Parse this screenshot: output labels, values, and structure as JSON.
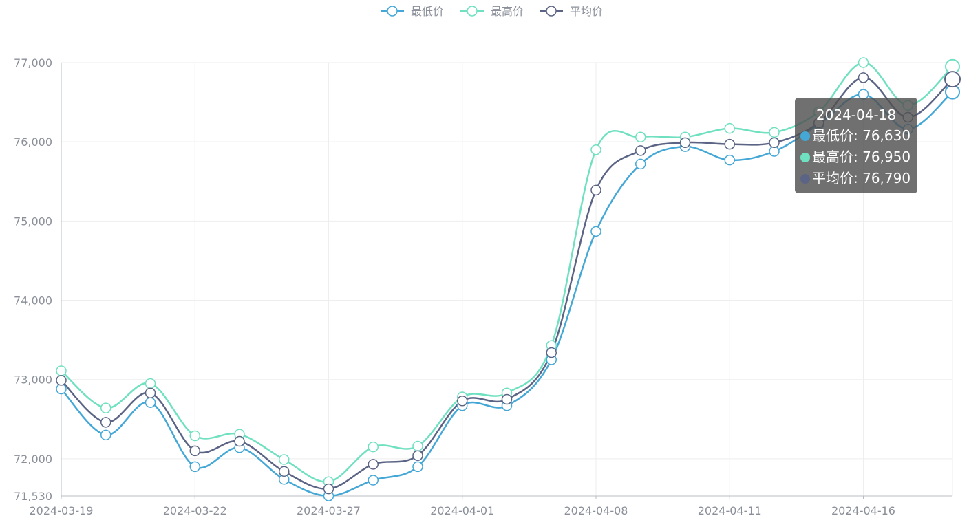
{
  "colors": {
    "low": "#44a7d6",
    "high": "#6fe0c0",
    "avg": "#5b6485",
    "grid": "#eeeeee",
    "axis": "#b8bcc4",
    "tick_text": "#8a8f99"
  },
  "tooltip": {
    "date": "2024-04-18",
    "rows": [
      {
        "label": "最低价: 76,630",
        "color": "#44a7d6"
      },
      {
        "label": "最高价: 76,950",
        "color": "#6fe0c0"
      },
      {
        "label": "平均价: 76,790",
        "color": "#5b6485"
      }
    ]
  },
  "chart_data": {
    "type": "line",
    "title": "",
    "xlabel": "",
    "ylabel": "",
    "x": [
      "2024-03-19",
      "2024-03-20",
      "2024-03-21",
      "2024-03-22",
      "2024-03-25",
      "2024-03-26",
      "2024-03-27",
      "2024-03-28",
      "2024-03-29",
      "2024-04-01",
      "2024-04-02",
      "2024-04-03",
      "2024-04-08",
      "2024-04-09",
      "2024-04-10",
      "2024-04-11",
      "2024-04-12",
      "2024-04-15",
      "2024-04-16",
      "2024-04-17",
      "2024-04-18"
    ],
    "x_tick_labels": [
      "2024-03-19",
      "2024-03-22",
      "2024-03-27",
      "2024-04-01",
      "2024-04-08",
      "2024-04-11",
      "2024-04-16"
    ],
    "x_tick_every": 3,
    "y_ticks": [
      71530,
      72000,
      73000,
      74000,
      75000,
      76000,
      77000
    ],
    "y_tick_labels": [
      "71,530",
      "72,000",
      "73,000",
      "74,000",
      "75,000",
      "76,000",
      "77,000"
    ],
    "ylim": [
      71530,
      77000
    ],
    "grid": true,
    "legend_position": "top-center",
    "smooth": true,
    "series": [
      {
        "name": "最低价",
        "key": "low",
        "values": [
          72880,
          72300,
          72710,
          71900,
          72140,
          71740,
          71530,
          71730,
          71900,
          72670,
          72670,
          73250,
          74870,
          75720,
          75940,
          75770,
          75880,
          76220,
          76600,
          76160,
          76630
        ]
      },
      {
        "name": "最高价",
        "key": "high",
        "values": [
          73110,
          72640,
          72950,
          72290,
          72310,
          71990,
          71710,
          72150,
          72160,
          72780,
          72830,
          73430,
          75900,
          76060,
          76060,
          76170,
          76120,
          76380,
          77000,
          76460,
          76950
        ]
      },
      {
        "name": "平均价",
        "key": "avg",
        "values": [
          72990,
          72460,
          72830,
          72100,
          72220,
          71840,
          71620,
          71930,
          72040,
          72730,
          72750,
          73340,
          75390,
          75890,
          75990,
          75970,
          75990,
          76240,
          76810,
          76310,
          76790
        ]
      }
    ]
  }
}
